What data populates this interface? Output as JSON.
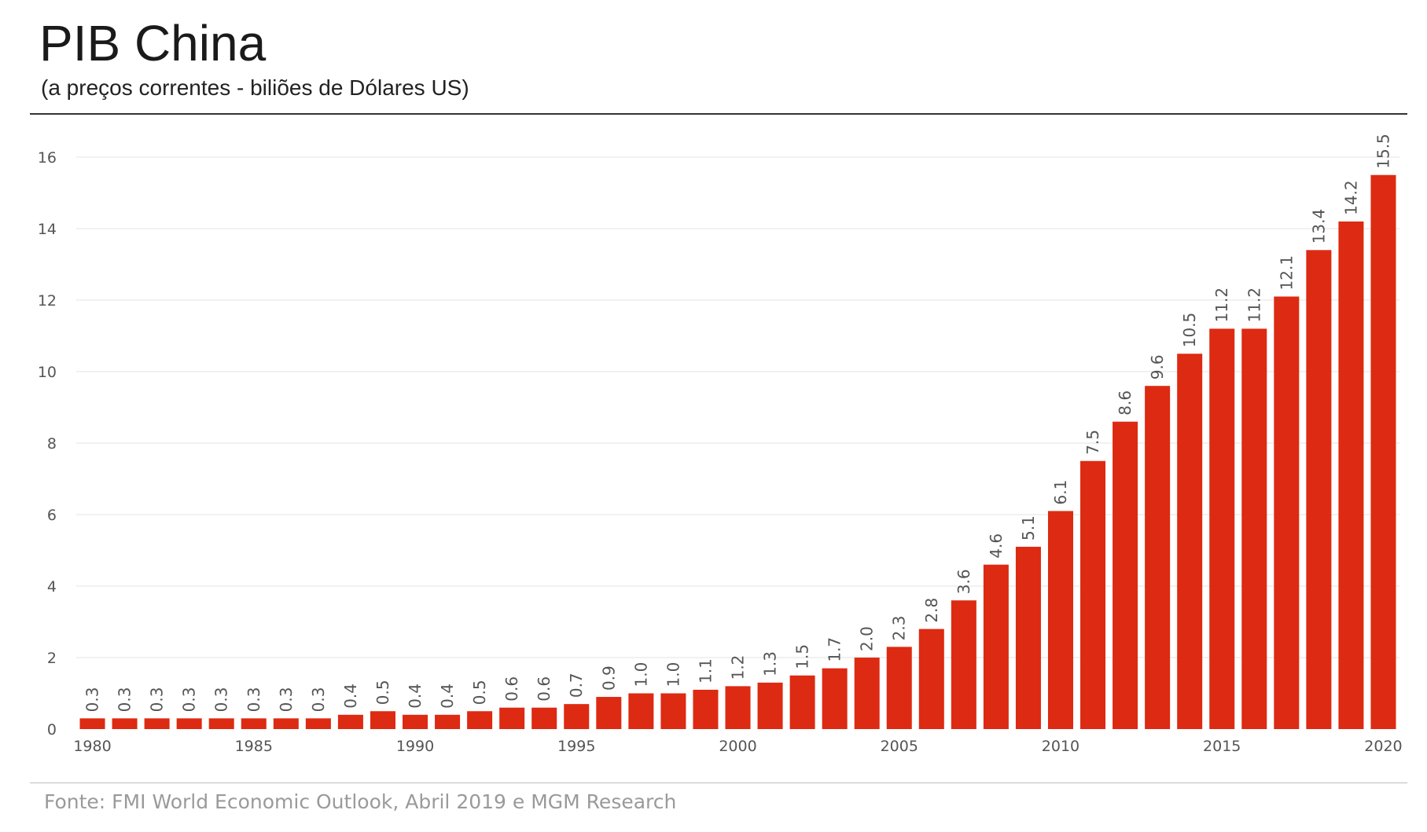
{
  "header": {
    "title": "PIB China",
    "subtitle": "(a preços correntes - biliões de Dólares US)"
  },
  "footer": {
    "source": "Fonte: FMI World Economic Outlook, Abril 2019 e MGM Research"
  },
  "colors": {
    "bar": "#dd2a12",
    "grid": "#e3e3e3"
  },
  "chart_data": {
    "type": "bar",
    "title": "PIB China",
    "subtitle": "(a preços correntes - biliões de Dólares US)",
    "xlabel": "",
    "ylabel": "",
    "ylim": [
      0,
      16
    ],
    "yticks": [
      0,
      2,
      4,
      6,
      8,
      10,
      12,
      14,
      16
    ],
    "grid": true,
    "categories": [
      "1980",
      "1981",
      "1982",
      "1983",
      "1984",
      "1985",
      "1986",
      "1987",
      "1988",
      "1989",
      "1990",
      "1991",
      "1992",
      "1993",
      "1994",
      "1995",
      "1996",
      "1997",
      "1998",
      "1999",
      "2000",
      "2001",
      "2002",
      "2003",
      "2004",
      "2005",
      "2006",
      "2007",
      "2008",
      "2009",
      "2010",
      "2011",
      "2012",
      "2013",
      "2014",
      "2015",
      "2016",
      "2017",
      "2018",
      "2019",
      "2020"
    ],
    "xtick_labels": [
      "1980",
      "1985",
      "1990",
      "1995",
      "2000",
      "2005",
      "2010",
      "2015",
      "2020"
    ],
    "values": [
      0.3,
      0.3,
      0.3,
      0.3,
      0.3,
      0.3,
      0.3,
      0.3,
      0.4,
      0.5,
      0.4,
      0.4,
      0.5,
      0.6,
      0.6,
      0.7,
      0.9,
      1.0,
      1.0,
      1.1,
      1.2,
      1.3,
      1.5,
      1.7,
      2.0,
      2.3,
      2.8,
      3.6,
      4.6,
      5.1,
      6.1,
      7.5,
      8.6,
      9.6,
      10.5,
      11.2,
      11.2,
      12.1,
      13.4,
      14.2,
      15.5
    ],
    "data_labels": [
      "0.3",
      "0.3",
      "0.3",
      "0.3",
      "0.3",
      "0.3",
      "0.3",
      "0.3",
      "0.4",
      "0.5",
      "0.4",
      "0.4",
      "0.5",
      "0.6",
      "0.6",
      "0.7",
      "0.9",
      "1.0",
      "1.0",
      "1.1",
      "1.2",
      "1.3",
      "1.5",
      "1.7",
      "2.0",
      "2.3",
      "2.8",
      "3.6",
      "4.6",
      "5.1",
      "6.1",
      "7.5",
      "8.6",
      "9.6",
      "10.5",
      "11.2",
      "11.2",
      "12.1",
      "13.4",
      "14.2",
      "15.5"
    ]
  }
}
